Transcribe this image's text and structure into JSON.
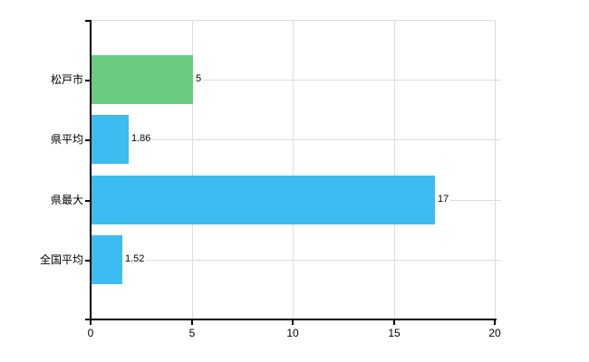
{
  "chart_data": {
    "type": "bar",
    "orientation": "horizontal",
    "title": "",
    "xlabel": "",
    "ylabel": "",
    "categories": [
      "松戸市",
      "県平均",
      "県最大",
      "全国平均"
    ],
    "values": [
      5,
      1.86,
      17,
      1.52
    ],
    "value_labels": [
      "5",
      "1.86",
      "17",
      "1.52"
    ],
    "bar_colors": [
      "#68CB7E",
      "#3CBCF0",
      "#3CBCF0",
      "#3CBCF0"
    ],
    "xlim": [
      0,
      20
    ],
    "x_ticks": [
      0,
      5,
      10,
      15,
      20
    ],
    "x_tick_labels": [
      "0",
      "5",
      "10",
      "15",
      "20"
    ],
    "grid": "on",
    "legend": "none",
    "colors": {
      "axis": "#000000",
      "gridline": "#dddddd",
      "text": "#000000",
      "background": "#ffffff",
      "series_green": "#68CB7E",
      "series_blue": "#3CBCF0"
    }
  }
}
